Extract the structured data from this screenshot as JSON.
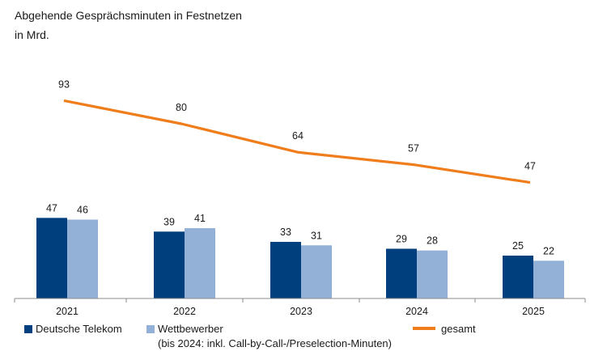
{
  "title": "Abgehende Gesprächsminuten in Festnetzen",
  "subtitle": "in Mrd.",
  "colors": {
    "dt": "#003f7d",
    "wb": "#93b0d6",
    "total": "#f07d1b",
    "axis": "#8c8c8c"
  },
  "legend": {
    "dt": "Deutsche Telekom",
    "wb": "Wettbewerber",
    "wb_note": "(bis 2024: inkl. Call-by-Call-/Preselection-Minuten)",
    "total": "gesamt"
  },
  "chart_data": {
    "type": "bar",
    "categories": [
      "2021",
      "2022",
      "2023",
      "2024",
      "2025"
    ],
    "series": [
      {
        "name": "Deutsche Telekom",
        "type": "bar",
        "values": [
          47,
          39,
          33,
          29,
          25
        ]
      },
      {
        "name": "Wettbewerber",
        "type": "bar",
        "values": [
          46,
          41,
          31,
          28,
          22
        ]
      },
      {
        "name": "gesamt",
        "type": "line",
        "values": [
          93,
          80,
          64,
          57,
          47
        ]
      }
    ],
    "title": "Abgehende Gesprächsminuten in Festnetzen",
    "ylabel": "in Mrd.",
    "grid": false,
    "legend_position": "bottom"
  }
}
